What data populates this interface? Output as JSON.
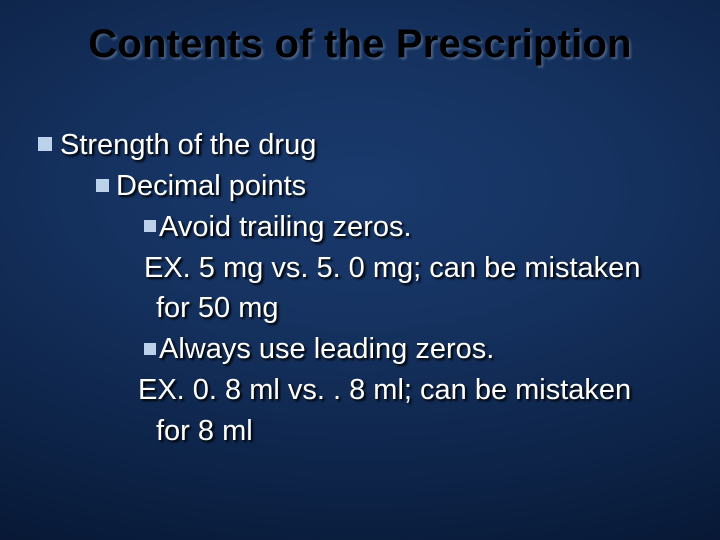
{
  "slide": {
    "title": "Contents of the Prescription",
    "background_gradient": [
      "#1a3a6e",
      "#153260",
      "#0d2347",
      "#061530",
      "#020a1c"
    ],
    "title_color": "#000000",
    "title_shadow": "rgba(120,140,170,0.55)",
    "body_color": "#ffffff",
    "body_shadow": "#000000",
    "bullet_color": "#bcd2ea",
    "title_fontsize": 40,
    "body_fontsize": 29,
    "lines": {
      "l1": "Strength of the drug",
      "l2": "Decimal points",
      "l3": "Avoid trailing zeros.",
      "l4": "EX. 5 mg vs. 5. 0 mg; can be mistaken",
      "l5": "for 50 mg",
      "l6": "Always use leading zeros.",
      "l7": "EX. 0. 8 ml vs. . 8 ml; can be mistaken",
      "l8": "for 8 ml"
    }
  }
}
